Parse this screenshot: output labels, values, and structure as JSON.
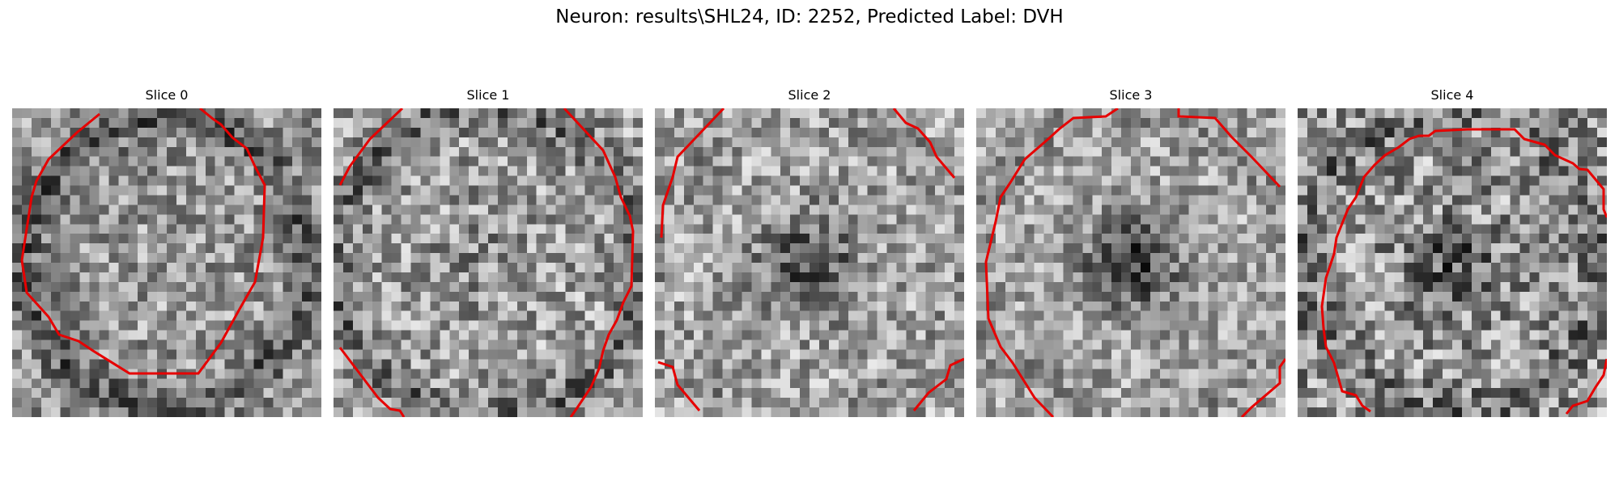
{
  "title": "Neuron: results\\SHL24, ID: 2252, Predicted Label: DVH",
  "slices": [
    {
      "label": "Slice 0"
    },
    {
      "label": "Slice 1"
    },
    {
      "label": "Slice 2"
    },
    {
      "label": "Slice 3"
    },
    {
      "label": "Slice 4"
    }
  ],
  "colors": {
    "contour": "#e60000",
    "colormap": "gray"
  }
}
